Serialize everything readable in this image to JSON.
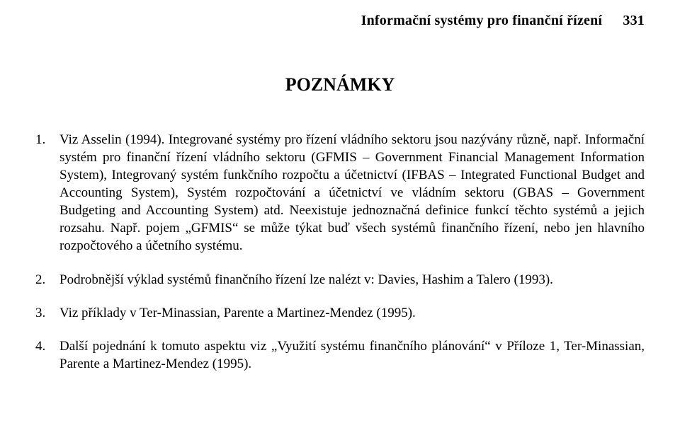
{
  "colors": {
    "background": "#ffffff",
    "text": "#000000"
  },
  "typography": {
    "font_family": "Times New Roman",
    "running_head_fontsize_pt": 15,
    "section_title_fontsize_pt": 20,
    "body_fontsize_pt": 14,
    "line_height": 1.32
  },
  "running_head": {
    "title": "Informační systémy pro finanční řízení",
    "page_number": "331"
  },
  "section_title": "POZNÁMKY",
  "notes": [
    {
      "n": "1.",
      "text": "Viz Asselin (1994). Integrované systémy pro řízení vládního sektoru jsou nazývány různě, např. Informační systém pro finanční řízení vládního sektoru (GFMIS – Government Financial Management Information System), Integrovaný systém funkčního rozpočtu a účetnictví (IFBAS – Integrated Functional Budget and Accounting System), Systém rozpočtování a účetnictví ve vládním sektoru (GBAS – Government Budgeting and Accounting System) atd. Neexistuje jednoznačná definice funkcí těchto systémů a jejich rozsahu. Např. pojem „GFMIS“ se může týkat buď všech systémů finančního řízení, nebo jen hlavního rozpočtového a účetního systému."
    },
    {
      "n": "2.",
      "text": "Podrobnější výklad systémů finančního řízení lze nalézt v: Davies, Hashim a Talero (1993)."
    },
    {
      "n": "3.",
      "text": "Viz příklady v Ter-Minassian, Parente a Martinez-Mendez (1995)."
    },
    {
      "n": "4.",
      "text": "Další pojednání k tomuto aspektu viz „Využití systému finančního plánování“ v Příloze 1, Ter-Minassian, Parente a Martinez-Mendez (1995)."
    }
  ]
}
